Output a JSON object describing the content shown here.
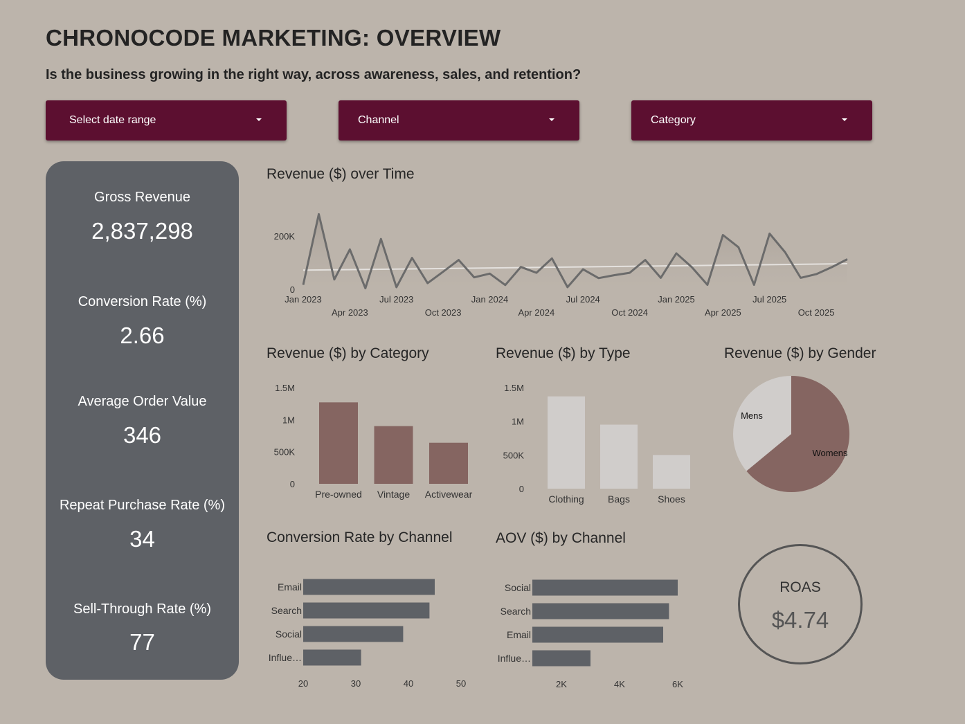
{
  "header": {
    "title": "CHRONOCODE MARKETING: OVERVIEW",
    "subtitle": "Is the business growing in the right way, across awareness, sales, and retention?"
  },
  "filters": {
    "date_range": "Select date range",
    "channel": "Channel",
    "category": "Category"
  },
  "kpis": [
    {
      "label": "Gross Revenue",
      "value": "2,837,298"
    },
    {
      "label": "Conversion Rate (%)",
      "value": "2.66"
    },
    {
      "label": "Average Order Value",
      "value": "346"
    },
    {
      "label": "Repeat Purchase Rate (%)",
      "value": "34"
    },
    {
      "label": "Sell-Through Rate (%)",
      "value": "77"
    }
  ],
  "roas": {
    "label": "ROAS",
    "value": "$4.74"
  },
  "colors": {
    "background": "#bcb4ab",
    "dropdown": "#5c0f30",
    "kpi_panel": "#5e6166",
    "mauve": "#856561",
    "light_gray": "#d0cdcb",
    "line": "#6b6b6b",
    "bar_dark": "#5e6166"
  },
  "chart_data": [
    {
      "type": "line",
      "title": "Revenue ($) over Time",
      "x_tick_labels": [
        "Jan 2023",
        "Apr 2023",
        "Jul 2023",
        "Oct 2023",
        "Jan 2024",
        "Apr 2024",
        "Jul 2024",
        "Oct 2024",
        "Jan 2025",
        "Apr 2025",
        "Jul 2025",
        "Oct 2025"
      ],
      "y_tick_labels": [
        "0",
        "200K"
      ],
      "ylim": [
        0,
        200000
      ],
      "x": [
        "2023-01",
        "2023-02",
        "2023-03",
        "2023-04",
        "2023-05",
        "2023-06",
        "2023-07",
        "2023-08",
        "2023-09",
        "2023-10",
        "2023-11",
        "2023-12",
        "2024-01",
        "2024-02",
        "2024-03",
        "2024-04",
        "2024-05",
        "2024-06",
        "2024-07",
        "2024-08",
        "2024-09",
        "2024-10",
        "2024-11",
        "2024-12",
        "2025-01",
        "2025-02",
        "2025-03",
        "2025-04",
        "2025-05",
        "2025-06",
        "2025-07",
        "2025-08",
        "2025-09",
        "2025-10",
        "2025-11",
        "2025-12"
      ],
      "series": [
        {
          "values": [
            17000,
            282000,
            37000,
            150000,
            4000,
            189000,
            8000,
            118000,
            23000,
            66000,
            110000,
            45000,
            59000,
            16000,
            84000,
            62000,
            116000,
            8000,
            75000,
            42000,
            53000,
            62000,
            110000,
            43000,
            135000,
            83000,
            17000,
            204000,
            158000,
            17000,
            209000,
            139000,
            43000,
            57000,
            83000,
            113000
          ]
        }
      ],
      "trendline": {
        "start": 72000,
        "end": 96000
      }
    },
    {
      "type": "bar",
      "title": "Revenue ($) by Category",
      "categories": [
        "Pre-owned",
        "Vintage",
        "Activewear"
      ],
      "values": [
        1270000,
        900000,
        640000
      ],
      "y_tick_labels": [
        "0",
        "500K",
        "1M",
        "1.5M"
      ],
      "ylim": [
        0,
        1500000
      ]
    },
    {
      "type": "bar",
      "title": "Revenue ($) by Type",
      "categories": [
        "Clothing",
        "Bags",
        "Shoes"
      ],
      "values": [
        1370000,
        950000,
        500000
      ],
      "y_tick_labels": [
        "0",
        "500K",
        "1M",
        "1.5M"
      ],
      "ylim": [
        0,
        1500000
      ]
    },
    {
      "type": "pie",
      "title": "Revenue ($) by Gender",
      "categories": [
        "Womens",
        "Mens"
      ],
      "values": [
        64,
        36
      ]
    },
    {
      "type": "bar",
      "orientation": "horizontal",
      "title": "Conversion Rate by Channel",
      "categories": [
        "Email",
        "Search",
        "Social",
        "Influe…"
      ],
      "values": [
        45,
        44,
        39,
        31
      ],
      "x_tick_labels": [
        "20",
        "30",
        "40",
        "50"
      ],
      "xlim": [
        20,
        50
      ]
    },
    {
      "type": "bar",
      "orientation": "horizontal",
      "title": "AOV ($) by Channel",
      "categories": [
        "Social",
        "Search",
        "Email",
        "Influe…"
      ],
      "values": [
        6000,
        5700,
        5500,
        3000
      ],
      "x_tick_labels": [
        "2K",
        "4K",
        "6K"
      ],
      "xlim": [
        1000,
        6000
      ]
    }
  ]
}
